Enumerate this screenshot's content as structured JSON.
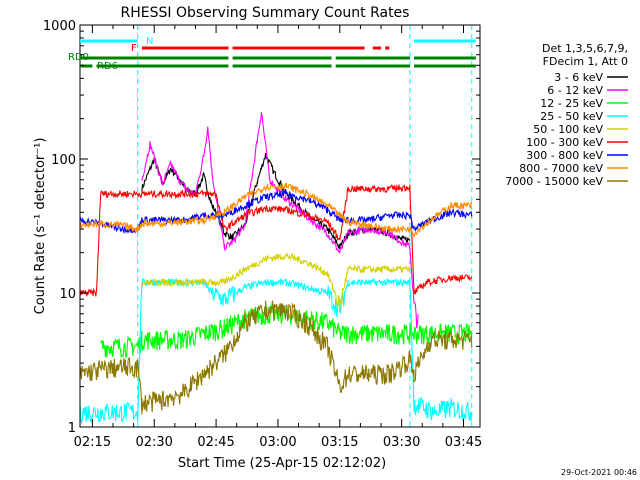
{
  "chart_data": {
    "type": "line",
    "title": "RHESSI Observing Summary Count Rates",
    "xlabel": "Start Time (25-Apr-15 02:12:02)",
    "ylabel": "Count Rate (s⁻¹ detector⁻¹)",
    "yscale": "log",
    "ylim": [
      1,
      1000
    ],
    "xlim_minutes": [
      0,
      97
    ],
    "x_tick_labels": [
      "02:15",
      "02:30",
      "02:45",
      "03:00",
      "03:15",
      "03:30",
      "03:45"
    ],
    "x_tick_minutes": [
      3,
      18,
      33,
      48,
      63,
      78,
      93
    ],
    "y_tick_labels": [
      "1",
      "10",
      "100",
      "1000"
    ],
    "y_tick_values": [
      1,
      10,
      100,
      1000
    ],
    "legend_header": [
      "Det 1,3,5,6,7,9,",
      "FDecim 1, Att 0"
    ],
    "legend": [
      {
        "label": "3 - 6 keV",
        "color": "#000000"
      },
      {
        "label": "6 - 12 keV",
        "color": "#ff00ff"
      },
      {
        "label": "12 - 25 keV",
        "color": "#00ff00"
      },
      {
        "label": "25 - 50 keV",
        "color": "#00ffff"
      },
      {
        "label": "50 - 100 keV",
        "color": "#d2d200"
      },
      {
        "label": "100 - 300 keV",
        "color": "#ff0000"
      },
      {
        "label": "300 - 800 keV",
        "color": "#0000ff"
      },
      {
        "label": "800 - 7000 keV",
        "color": "#ff8c00"
      },
      {
        "label": "7000 - 15000 keV",
        "color": "#8c7800"
      }
    ],
    "flags": [
      {
        "name": "N",
        "color": "#00ffff",
        "segments_minutes": [
          [
            0,
            14
          ],
          [
            81,
            96
          ]
        ]
      },
      {
        "name": "F",
        "color": "#ff0000",
        "segments_minutes": [
          [
            15,
            36
          ],
          [
            37,
            69
          ],
          [
            71,
            73
          ],
          [
            74,
            75
          ]
        ]
      },
      {
        "name": "RD0",
        "color": "#008000",
        "segments_minutes": [
          [
            0,
            36
          ],
          [
            37,
            61
          ],
          [
            62,
            80
          ],
          [
            81,
            96
          ]
        ]
      },
      {
        "name": "RD6",
        "color": "#008000",
        "segments_minutes": [
          [
            0,
            3
          ],
          [
            4,
            36
          ],
          [
            37,
            61
          ],
          [
            62,
            80
          ],
          [
            81,
            96
          ]
        ]
      }
    ],
    "vertical_markers_minutes": [
      14,
      80,
      95
    ],
    "series": [
      {
        "name": "3 - 6 keV",
        "color": "#000000",
        "points": [
          [
            14,
            0
          ],
          [
            15,
            60
          ],
          [
            18,
            100
          ],
          [
            20,
            65
          ],
          [
            22,
            85
          ],
          [
            24,
            72
          ],
          [
            26,
            58
          ],
          [
            28,
            55
          ],
          [
            30,
            75
          ],
          [
            32,
            45
          ],
          [
            33,
            40
          ],
          [
            35,
            28
          ],
          [
            37,
            26
          ],
          [
            40,
            32
          ],
          [
            43,
            68
          ],
          [
            45,
            108
          ],
          [
            47,
            80
          ],
          [
            50,
            55
          ],
          [
            53,
            45
          ],
          [
            56,
            36
          ],
          [
            60,
            30
          ],
          [
            63,
            22
          ],
          [
            65,
            28
          ],
          [
            70,
            30
          ],
          [
            75,
            28
          ],
          [
            78,
            25
          ],
          [
            80,
            25
          ]
        ]
      },
      {
        "name": "6 - 12 keV",
        "color": "#ff00ff",
        "points": [
          [
            14,
            0
          ],
          [
            15,
            70
          ],
          [
            17,
            130
          ],
          [
            20,
            65
          ],
          [
            22,
            92
          ],
          [
            24,
            70
          ],
          [
            26,
            58
          ],
          [
            28,
            55
          ],
          [
            30,
            105
          ],
          [
            31,
            175
          ],
          [
            32,
            80
          ],
          [
            33,
            50
          ],
          [
            35,
            22
          ],
          [
            37,
            24
          ],
          [
            40,
            32
          ],
          [
            43,
            140
          ],
          [
            44,
            225
          ],
          [
            46,
            70
          ],
          [
            50,
            50
          ],
          [
            53,
            42
          ],
          [
            56,
            35
          ],
          [
            60,
            28
          ],
          [
            63,
            20
          ],
          [
            65,
            28
          ],
          [
            70,
            30
          ],
          [
            75,
            28
          ],
          [
            78,
            24
          ],
          [
            80,
            22
          ],
          [
            81,
            8
          ],
          [
            82,
            6
          ]
        ]
      },
      {
        "name": "12 - 25 keV",
        "color": "#00ff00",
        "points": [
          [
            5,
            4
          ],
          [
            14,
            4
          ],
          [
            15,
            4.5
          ],
          [
            25,
            4.5
          ],
          [
            30,
            5
          ],
          [
            35,
            5.5
          ],
          [
            40,
            6.5
          ],
          [
            45,
            7
          ],
          [
            50,
            7
          ],
          [
            55,
            6.5
          ],
          [
            60,
            6
          ],
          [
            63,
            5
          ],
          [
            66,
            5
          ],
          [
            70,
            5
          ],
          [
            75,
            5
          ],
          [
            80,
            5
          ],
          [
            83,
            5
          ],
          [
            90,
            5
          ],
          [
            95,
            5
          ]
        ]
      },
      {
        "name": "25 - 50 keV",
        "color": "#00ffff",
        "points": [
          [
            0,
            1.3
          ],
          [
            5,
            1.3
          ],
          [
            10,
            1.3
          ],
          [
            14,
            1.3
          ],
          [
            15,
            12
          ],
          [
            25,
            12
          ],
          [
            30,
            12
          ],
          [
            32,
            10
          ],
          [
            35,
            9
          ],
          [
            40,
            11
          ],
          [
            45,
            12
          ],
          [
            50,
            12
          ],
          [
            55,
            11
          ],
          [
            60,
            10
          ],
          [
            63,
            7.5
          ],
          [
            65,
            12
          ],
          [
            70,
            12
          ],
          [
            75,
            12
          ],
          [
            80,
            12
          ],
          [
            81,
            1.5
          ],
          [
            86,
            1.3
          ],
          [
            90,
            1.4
          ],
          [
            95,
            1.3
          ]
        ]
      },
      {
        "name": "50 - 100 keV",
        "color": "#d2d200",
        "points": [
          [
            14,
            0
          ],
          [
            15,
            12
          ],
          [
            30,
            12
          ],
          [
            32,
            12
          ],
          [
            35,
            12
          ],
          [
            40,
            15
          ],
          [
            45,
            18
          ],
          [
            50,
            19
          ],
          [
            55,
            17
          ],
          [
            60,
            14
          ],
          [
            63,
            8
          ],
          [
            65,
            15
          ],
          [
            80,
            15
          ],
          [
            81,
            0
          ]
        ]
      },
      {
        "name": "100 - 300 keV",
        "color": "#ff0000",
        "points": [
          [
            0,
            10
          ],
          [
            4,
            10
          ],
          [
            5,
            55
          ],
          [
            15,
            55
          ],
          [
            25,
            55
          ],
          [
            33,
            55
          ],
          [
            34,
            40
          ],
          [
            35,
            30
          ],
          [
            40,
            38
          ],
          [
            45,
            43
          ],
          [
            50,
            42
          ],
          [
            55,
            38
          ],
          [
            60,
            34
          ],
          [
            63,
            25
          ],
          [
            65,
            60
          ],
          [
            70,
            60
          ],
          [
            75,
            60
          ],
          [
            80,
            62
          ],
          [
            81,
            10
          ],
          [
            84,
            12
          ],
          [
            90,
            13
          ],
          [
            95,
            13
          ]
        ]
      },
      {
        "name": "300 - 800 keV",
        "color": "#0000ff",
        "points": [
          [
            0,
            35
          ],
          [
            5,
            33
          ],
          [
            10,
            30
          ],
          [
            14,
            30
          ],
          [
            15,
            35
          ],
          [
            20,
            35
          ],
          [
            25,
            35
          ],
          [
            30,
            38
          ],
          [
            35,
            38
          ],
          [
            40,
            45
          ],
          [
            45,
            52
          ],
          [
            50,
            55
          ],
          [
            55,
            50
          ],
          [
            60,
            42
          ],
          [
            63,
            35
          ],
          [
            65,
            35
          ],
          [
            70,
            35
          ],
          [
            75,
            38
          ],
          [
            80,
            38
          ],
          [
            81,
            30
          ],
          [
            85,
            35
          ],
          [
            90,
            40
          ],
          [
            95,
            38
          ]
        ]
      },
      {
        "name": "800 - 7000 keV",
        "color": "#ff8c00",
        "points": [
          [
            0,
            32
          ],
          [
            5,
            33
          ],
          [
            10,
            32
          ],
          [
            14,
            30
          ],
          [
            15,
            33
          ],
          [
            20,
            33
          ],
          [
            25,
            34
          ],
          [
            30,
            35
          ],
          [
            35,
            40
          ],
          [
            40,
            52
          ],
          [
            45,
            62
          ],
          [
            50,
            63
          ],
          [
            55,
            55
          ],
          [
            60,
            45
          ],
          [
            63,
            38
          ],
          [
            65,
            34
          ],
          [
            70,
            32
          ],
          [
            75,
            30
          ],
          [
            80,
            30
          ],
          [
            81,
            28
          ],
          [
            85,
            35
          ],
          [
            90,
            45
          ],
          [
            95,
            45
          ]
        ]
      },
      {
        "name": "7000 - 15000 keV",
        "color": "#8c7800",
        "points": [
          [
            0,
            2.5
          ],
          [
            5,
            2.7
          ],
          [
            10,
            2.8
          ],
          [
            14,
            2.8
          ],
          [
            15,
            1.5
          ],
          [
            20,
            1.6
          ],
          [
            25,
            1.8
          ],
          [
            30,
            2.5
          ],
          [
            35,
            3.5
          ],
          [
            40,
            6
          ],
          [
            45,
            7.5
          ],
          [
            50,
            7.5
          ],
          [
            55,
            6
          ],
          [
            60,
            4
          ],
          [
            63,
            2
          ],
          [
            65,
            2.5
          ],
          [
            70,
            2.5
          ],
          [
            75,
            2.5
          ],
          [
            80,
            3.2
          ],
          [
            81,
            2.5
          ],
          [
            85,
            4.5
          ],
          [
            90,
            4.5
          ],
          [
            95,
            4.5
          ]
        ]
      }
    ]
  },
  "footer": {
    "timestamp": "29-Oct-2021 00:46"
  }
}
